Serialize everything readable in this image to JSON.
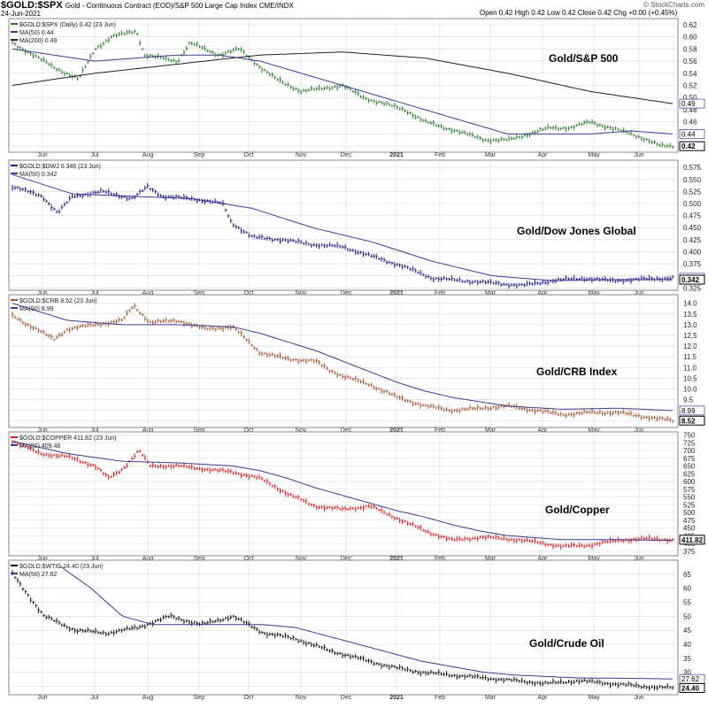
{
  "header": {
    "symbol": "$GOLD:$SPX",
    "description": "Gold - Continuous Contract (EOD)/S&P 500 Large Cap Index  CME/INDX",
    "date": "24-Jun-2021",
    "ohlc": "Open 0.42  High 0.42  Low 0.42  Close 0.42  Chg +0.00 (+0.45%)",
    "brand": "© StockCharts.com"
  },
  "x_months": [
    "Jun",
    "Jul",
    "Aug",
    "Sep",
    "Oct",
    "Nov",
    "Dec",
    "2021",
    "Feb",
    "Mar",
    "Apr",
    "May",
    "Jun"
  ],
  "colors": {
    "ma": "#3a3a9a",
    "ma200": "#222222",
    "grid": "#d8d8d8",
    "border": "#888888"
  },
  "chart_data": [
    {
      "type": "line",
      "title": "Gold/S&P 500",
      "legend": [
        "$GOLD:$SPX (Daily) 0.42 (23 Jun)",
        "MA(50) 0.44",
        "MA(200) 0.49"
      ],
      "price_color": "#2e7d2e",
      "ylim": [
        0.41,
        0.63
      ],
      "yticks": [
        "0.62",
        "0.60",
        "0.58",
        "0.56",
        "0.54",
        "0.52",
        "0.50",
        "0.48",
        "0.46",
        "0.44",
        "0.42"
      ],
      "last_labels": [
        "0.49",
        "0.44",
        "0.42"
      ],
      "price_keys": [
        [
          0,
          0.59
        ],
        [
          1,
          0.55
        ],
        [
          1.6,
          0.53
        ],
        [
          2,
          0.58
        ],
        [
          2.4,
          0.6
        ],
        [
          3,
          0.61
        ],
        [
          3.2,
          0.57
        ],
        [
          4,
          0.56
        ],
        [
          4.3,
          0.59
        ],
        [
          5,
          0.57
        ],
        [
          5.5,
          0.58
        ],
        [
          6,
          0.55
        ],
        [
          6.4,
          0.53
        ],
        [
          7,
          0.51
        ],
        [
          8,
          0.52
        ],
        [
          8.5,
          0.5
        ],
        [
          9,
          0.49
        ],
        [
          9.5,
          0.48
        ],
        [
          10,
          0.46
        ],
        [
          10.5,
          0.45
        ],
        [
          11,
          0.44
        ],
        [
          11.5,
          0.43
        ],
        [
          12,
          0.43
        ],
        [
          12.5,
          0.44
        ],
        [
          13,
          0.45
        ],
        [
          13.5,
          0.45
        ],
        [
          14,
          0.46
        ],
        [
          14.5,
          0.45
        ],
        [
          15,
          0.44
        ],
        [
          15.4,
          0.43
        ],
        [
          15.7,
          0.42
        ],
        [
          16,
          0.42
        ]
      ],
      "ma_keys": [
        [
          0,
          0.58
        ],
        [
          2,
          0.56
        ],
        [
          4,
          0.57
        ],
        [
          5,
          0.57
        ],
        [
          6,
          0.56
        ],
        [
          7,
          0.54
        ],
        [
          8,
          0.52
        ],
        [
          9,
          0.5
        ],
        [
          10,
          0.48
        ],
        [
          11,
          0.46
        ],
        [
          12,
          0.44
        ],
        [
          13,
          0.44
        ],
        [
          14,
          0.44
        ],
        [
          15,
          0.445
        ],
        [
          16,
          0.44
        ]
      ],
      "ma200_keys": [
        [
          0,
          0.52
        ],
        [
          2,
          0.54
        ],
        [
          4,
          0.555
        ],
        [
          6,
          0.57
        ],
        [
          8,
          0.575
        ],
        [
          10,
          0.565
        ],
        [
          12,
          0.54
        ],
        [
          14,
          0.51
        ],
        [
          16,
          0.49
        ]
      ],
      "annotation": "Gold/S&P 500"
    },
    {
      "type": "line",
      "title": "Gold/Dow Jones Global",
      "legend": [
        "$GOLD:$DWJ 0.346 (23 Jun)",
        "MA(50) 0.342"
      ],
      "price_color": "#1a1a80",
      "ylim": [
        0.32,
        0.59
      ],
      "yticks": [
        "0.575",
        "0.550",
        "0.525",
        "0.500",
        "0.475",
        "0.450",
        "0.425",
        "0.400",
        "0.375",
        "0.350",
        "0.325"
      ],
      "last_labels": [
        "0.346",
        "0.342"
      ],
      "price_keys": [
        [
          0,
          0.535
        ],
        [
          1,
          0.515
        ],
        [
          1.5,
          0.48
        ],
        [
          2,
          0.515
        ],
        [
          3,
          0.525
        ],
        [
          4,
          0.51
        ],
        [
          4.5,
          0.535
        ],
        [
          5,
          0.515
        ],
        [
          6,
          0.51
        ],
        [
          7,
          0.5
        ],
        [
          7.3,
          0.46
        ],
        [
          8,
          0.43
        ],
        [
          9,
          0.425
        ],
        [
          10,
          0.415
        ],
        [
          11,
          0.41
        ],
        [
          12,
          0.39
        ],
        [
          13,
          0.37
        ],
        [
          14,
          0.345
        ],
        [
          15,
          0.34
        ],
        [
          16,
          0.335
        ],
        [
          17,
          0.33
        ],
        [
          18,
          0.34
        ],
        [
          19,
          0.345
        ],
        [
          20,
          0.34
        ],
        [
          21,
          0.343
        ],
        [
          22,
          0.346
        ]
      ],
      "ma_keys": [
        [
          0,
          0.56
        ],
        [
          2,
          0.52
        ],
        [
          4,
          0.515
        ],
        [
          6,
          0.51
        ],
        [
          7,
          0.5
        ],
        [
          8,
          0.49
        ],
        [
          9,
          0.47
        ],
        [
          10,
          0.45
        ],
        [
          11,
          0.435
        ],
        [
          12,
          0.42
        ],
        [
          13,
          0.4
        ],
        [
          14,
          0.38
        ],
        [
          15,
          0.365
        ],
        [
          16,
          0.35
        ],
        [
          18,
          0.34
        ],
        [
          20,
          0.342
        ],
        [
          22,
          0.342
        ]
      ],
      "annotation": "Gold/Dow Jones Global"
    },
    {
      "type": "line",
      "title": "Gold/CRB Index",
      "legend": [
        "$GOLD:$CRB 8.52 (23 Jun)",
        "MA(50) 8.99"
      ],
      "price_color": "#a0522d",
      "ylim": [
        8.2,
        14.4
      ],
      "yticks": [
        "14.0",
        "13.5",
        "13.0",
        "12.5",
        "12.0",
        "11.5",
        "11.0",
        "10.5",
        "10.0",
        "9.5",
        "9.0",
        "8.5"
      ],
      "last_labels": [
        "8.99",
        "8.52"
      ],
      "price_keys": [
        [
          0,
          13.4
        ],
        [
          1,
          12.7
        ],
        [
          1.5,
          12.3
        ],
        [
          2,
          12.8
        ],
        [
          3,
          13.0
        ],
        [
          4,
          13.2
        ],
        [
          4.4,
          13.9
        ],
        [
          5,
          13.1
        ],
        [
          6,
          13.2
        ],
        [
          7,
          12.8
        ],
        [
          8,
          12.9
        ],
        [
          8.5,
          12.3
        ],
        [
          9,
          11.7
        ],
        [
          10,
          11.4
        ],
        [
          11,
          11.3
        ],
        [
          11.5,
          10.9
        ],
        [
          12,
          10.6
        ],
        [
          13,
          10.2
        ],
        [
          14,
          9.6
        ],
        [
          15,
          9.2
        ],
        [
          16,
          9.0
        ],
        [
          17,
          9.1
        ],
        [
          18,
          9.2
        ],
        [
          19,
          9.0
        ],
        [
          20,
          8.8
        ],
        [
          21,
          8.9
        ],
        [
          22,
          8.9
        ],
        [
          23,
          8.7
        ],
        [
          24,
          8.52
        ]
      ],
      "ma_keys": [
        [
          0,
          14.0
        ],
        [
          2,
          13.2
        ],
        [
          4,
          13.0
        ],
        [
          6,
          13.0
        ],
        [
          8,
          12.9
        ],
        [
          9,
          12.6
        ],
        [
          10,
          12.2
        ],
        [
          11,
          11.8
        ],
        [
          12,
          11.3
        ],
        [
          13,
          10.8
        ],
        [
          14,
          10.3
        ],
        [
          15,
          9.9
        ],
        [
          16,
          9.6
        ],
        [
          17,
          9.4
        ],
        [
          18,
          9.2
        ],
        [
          20,
          9.05
        ],
        [
          22,
          9.1
        ],
        [
          24,
          8.99
        ]
      ],
      "annotation": "Gold/CRB Index"
    },
    {
      "type": "line",
      "title": "Gold/Copper",
      "legend": [
        "$GOLD:$COPPER 411.82 (23 Jun)",
        "MA(50) 409.48"
      ],
      "price_color": "#d42020",
      "ylim": [
        360,
        760
      ],
      "yticks": [
        "750",
        "725",
        "700",
        "675",
        "650",
        "625",
        "600",
        "575",
        "550",
        "525",
        "500",
        "475",
        "450",
        "425",
        "400",
        "375"
      ],
      "last_labels": [
        "411.82"
      ],
      "price_keys": [
        [
          0,
          730
        ],
        [
          1,
          690
        ],
        [
          2,
          680
        ],
        [
          3,
          650
        ],
        [
          3.5,
          610
        ],
        [
          4,
          640
        ],
        [
          4.6,
          700
        ],
        [
          5,
          650
        ],
        [
          6,
          650
        ],
        [
          7,
          640
        ],
        [
          8,
          630
        ],
        [
          9,
          610
        ],
        [
          10,
          560
        ],
        [
          11,
          520
        ],
        [
          12,
          510
        ],
        [
          13,
          520
        ],
        [
          14,
          480
        ],
        [
          15,
          440
        ],
        [
          16,
          410
        ],
        [
          17,
          420
        ],
        [
          18,
          415
        ],
        [
          19,
          405
        ],
        [
          20,
          390
        ],
        [
          21,
          395
        ],
        [
          22,
          410
        ],
        [
          23,
          415
        ],
        [
          24,
          411.82
        ]
      ],
      "ma_keys": [
        [
          0,
          730
        ],
        [
          2,
          690
        ],
        [
          4,
          665
        ],
        [
          6,
          660
        ],
        [
          8,
          650
        ],
        [
          9,
          635
        ],
        [
          10,
          610
        ],
        [
          11,
          580
        ],
        [
          12,
          555
        ],
        [
          13,
          530
        ],
        [
          14,
          505
        ],
        [
          15,
          485
        ],
        [
          16,
          460
        ],
        [
          17,
          440
        ],
        [
          18,
          425
        ],
        [
          20,
          412
        ],
        [
          22,
          412
        ],
        [
          24,
          409.48
        ]
      ],
      "annotation": "Gold/Copper"
    },
    {
      "type": "line",
      "title": "Gold/Crude Oil",
      "legend": [
        "$GOLD:$WTIC 24.40 (23 Jun)",
        "MA(50) 27.62"
      ],
      "price_color": "#111111",
      "ylim": [
        22,
        70
      ],
      "yticks": [
        "65",
        "60",
        "55",
        "50",
        "45",
        "40",
        "35",
        "30",
        "25"
      ],
      "last_labels": [
        "27.62",
        "24.40"
      ],
      "price_keys": [
        [
          0,
          65
        ],
        [
          1,
          50
        ],
        [
          2,
          45
        ],
        [
          3,
          44
        ],
        [
          4,
          46
        ],
        [
          5,
          50
        ],
        [
          6,
          47
        ],
        [
          7,
          50
        ],
        [
          8,
          44
        ],
        [
          9,
          42
        ],
        [
          10,
          38
        ],
        [
          11,
          35
        ],
        [
          12,
          32
        ],
        [
          13,
          30
        ],
        [
          14,
          29
        ],
        [
          15,
          28
        ],
        [
          16,
          27
        ],
        [
          17,
          26
        ],
        [
          18,
          27
        ],
        [
          19,
          26
        ],
        [
          20,
          25
        ],
        [
          21,
          24.4
        ]
      ],
      "ma_keys": [
        [
          1.5,
          68
        ],
        [
          2.5,
          60
        ],
        [
          3.5,
          50
        ],
        [
          4.5,
          47
        ],
        [
          6,
          47
        ],
        [
          8,
          47
        ],
        [
          9,
          46
        ],
        [
          10,
          43
        ],
        [
          11,
          40
        ],
        [
          12,
          37
        ],
        [
          13,
          34
        ],
        [
          14,
          32
        ],
        [
          15,
          30
        ],
        [
          16,
          29
        ],
        [
          18,
          28
        ],
        [
          20,
          27.8
        ],
        [
          21,
          27.62
        ]
      ],
      "annotation": "Gold/Crude Oil"
    }
  ]
}
